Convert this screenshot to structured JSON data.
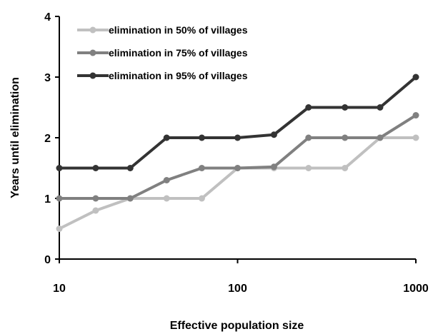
{
  "chart_data": {
    "type": "line",
    "xlabel": "Effective population size",
    "ylabel": "Years until elimination",
    "x_scale": "log",
    "xlim": [
      10,
      1000
    ],
    "ylim": [
      0,
      4
    ],
    "x_ticks": [
      10,
      100,
      1000
    ],
    "x_tick_labels": [
      "10",
      "100",
      "1000"
    ],
    "y_ticks": [
      0,
      1,
      2,
      3,
      4
    ],
    "y_tick_labels": [
      "0",
      "1",
      "2",
      "3",
      "4"
    ],
    "grid": false,
    "legend_position": "top-left",
    "x": [
      10,
      16,
      25,
      40,
      63,
      100,
      160,
      250,
      400,
      630,
      1000
    ],
    "series": [
      {
        "name": "elimination in 50% of villages",
        "color": "#c0c0c0",
        "values": [
          0.5,
          0.8,
          1.0,
          1.0,
          1.0,
          1.5,
          1.5,
          1.5,
          1.5,
          2.0,
          2.0
        ]
      },
      {
        "name": "elimination in 75% of villages",
        "color": "#808080",
        "values": [
          1.0,
          1.0,
          1.0,
          1.3,
          1.5,
          1.5,
          1.52,
          2.0,
          2.0,
          2.0,
          2.37
        ]
      },
      {
        "name": "elimination in 95% of villages",
        "color": "#333333",
        "values": [
          1.5,
          1.5,
          1.5,
          2.0,
          2.0,
          2.0,
          2.05,
          2.5,
          2.5,
          2.5,
          3.0
        ]
      }
    ]
  }
}
